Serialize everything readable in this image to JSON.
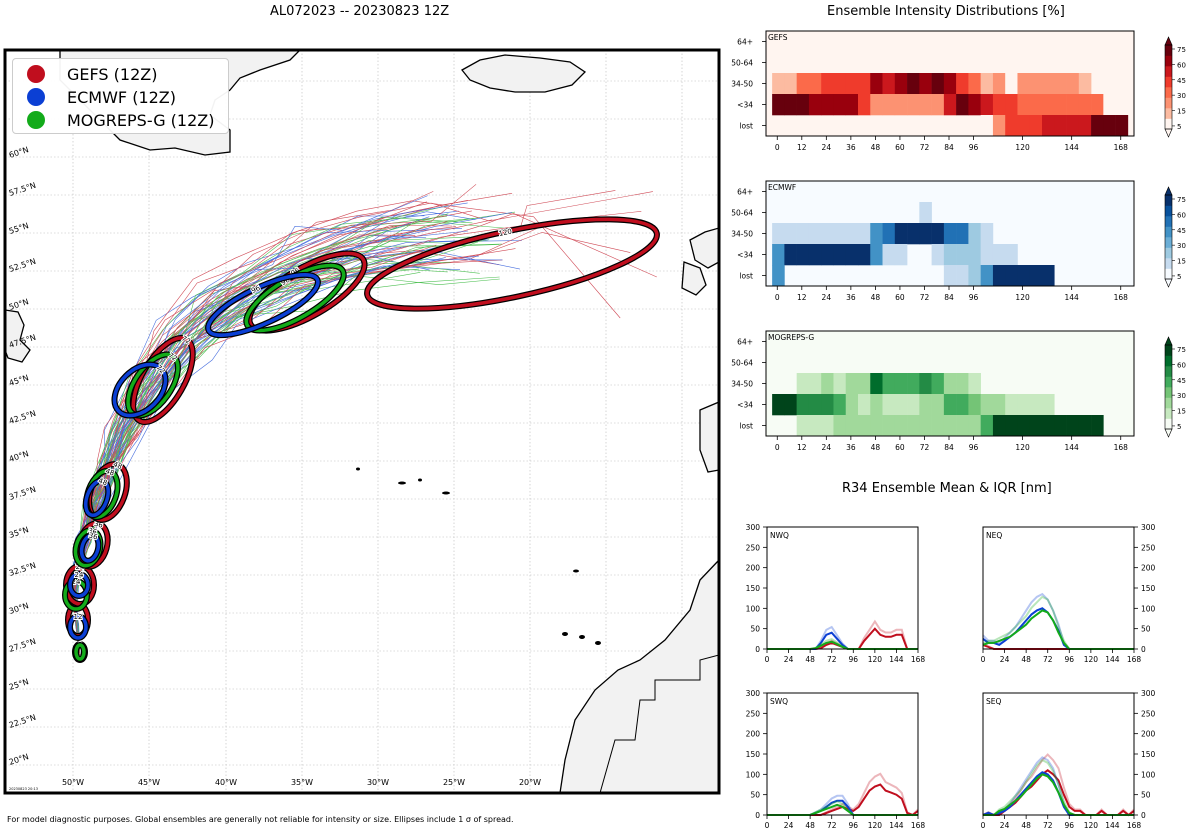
{
  "map": {
    "title": "AL072023 -- 20230823 12Z",
    "footer": "For model diagnostic purposes. Global ensembles are generally not reliable for intensity or size. Ellipses include 1 σ of spread.",
    "stamp": "20230823 20:13",
    "legend": [
      {
        "label": "GEFS (12Z)",
        "color": "#c00e1e"
      },
      {
        "label": "ECMWF (12Z)",
        "color": "#0b3fd4"
      },
      {
        "label": "MOGREPS-G (12Z)",
        "color": "#13ab1a"
      }
    ],
    "lon_labels": [
      "50°W",
      "45°W",
      "40°W",
      "35°W",
      "30°W",
      "25°W",
      "20°W"
    ],
    "lat_labels": [
      "20°N",
      "22.5°N",
      "25°N",
      "27.5°N",
      "30°N",
      "32.5°N",
      "35°N",
      "37.5°N",
      "40°N",
      "42.5°N",
      "45°N",
      "47.5°N",
      "50°N",
      "52.5°N",
      "55°N",
      "57.5°N",
      "60°N"
    ],
    "track_ellipse_labels": [
      "0",
      "12",
      "24",
      "36",
      "48",
      "72",
      "96",
      "120"
    ]
  },
  "chart_data": [
    {
      "type": "heatmap",
      "title": "Ensemble Intensity Distributions [%]",
      "panels": [
        {
          "name": "GEFS",
          "colormap": "Reds"
        },
        {
          "name": "ECMWF",
          "colormap": "Blues"
        },
        {
          "name": "MOGREPS-G",
          "colormap": "Greens"
        }
      ],
      "y_categories": [
        "64+",
        "50-64",
        "34-50",
        "<34",
        "lost"
      ],
      "x_ticks": [
        "0",
        "12",
        "24",
        "36",
        "48",
        "60",
        "72",
        "84",
        "96",
        "120",
        "144",
        "168"
      ],
      "colorbar_ticks": [
        "75",
        "60",
        "45",
        "30",
        "15",
        "5"
      ],
      "times": [
        0,
        6,
        12,
        18,
        24,
        30,
        36,
        42,
        48,
        54,
        60,
        66,
        72,
        78,
        84,
        90,
        96,
        102,
        108,
        114,
        120,
        126,
        132,
        138,
        144,
        150,
        156,
        162,
        168
      ],
      "values": {
        "GEFS": {
          "64+": [
            0,
            0,
            0,
            0,
            0,
            0,
            0,
            0,
            0,
            0,
            0,
            0,
            0,
            0,
            0,
            0,
            0,
            0,
            0,
            0,
            0,
            0,
            0,
            0,
            0,
            0,
            0,
            0,
            0
          ],
          "50-64": [
            0,
            0,
            0,
            0,
            0,
            0,
            0,
            0,
            0,
            0,
            10,
            0,
            0,
            0,
            0,
            0,
            0,
            0,
            10,
            10,
            0,
            0,
            0,
            0,
            0,
            0,
            0,
            0,
            0
          ],
          "34-50": [
            20,
            20,
            35,
            35,
            45,
            45,
            45,
            50,
            65,
            60,
            65,
            78,
            70,
            78,
            65,
            50,
            35,
            20,
            30,
            5,
            30,
            30,
            30,
            30,
            30,
            20,
            0,
            0,
            0
          ],
          "<34": [
            78,
            78,
            78,
            65,
            65,
            65,
            65,
            45,
            30,
            30,
            30,
            30,
            30,
            30,
            55,
            78,
            65,
            55,
            45,
            45,
            35,
            35,
            35,
            35,
            35,
            35,
            35,
            10,
            10
          ],
          "lost": [
            0,
            0,
            0,
            0,
            0,
            0,
            0,
            0,
            0,
            0,
            0,
            0,
            0,
            0,
            0,
            0,
            0,
            10,
            25,
            45,
            45,
            45,
            60,
            60,
            60,
            60,
            78,
            78,
            78
          ]
        },
        "ECMWF": {
          "64+": [
            0,
            0,
            0,
            0,
            0,
            0,
            0,
            0,
            0,
            0,
            0,
            0,
            0,
            0,
            0,
            0,
            0,
            0,
            0,
            0,
            0,
            0,
            0,
            0,
            0,
            0,
            0,
            0,
            0
          ],
          "50-64": [
            0,
            0,
            0,
            0,
            0,
            0,
            0,
            0,
            0,
            0,
            0,
            0,
            12,
            0,
            0,
            0,
            0,
            0,
            0,
            0,
            0,
            0,
            0,
            0,
            0,
            0,
            0,
            0,
            0
          ],
          "34-50": [
            12,
            12,
            12,
            12,
            12,
            12,
            12,
            12,
            45,
            60,
            78,
            78,
            78,
            78,
            60,
            60,
            30,
            12,
            0,
            0,
            0,
            0,
            0,
            0,
            0,
            0,
            0,
            0,
            0
          ],
          "<34": [
            45,
            78,
            78,
            78,
            78,
            78,
            78,
            78,
            45,
            20,
            20,
            0,
            0,
            20,
            30,
            30,
            30,
            20,
            12,
            12,
            0,
            0,
            0,
            0,
            0,
            0,
            0,
            0,
            0
          ],
          "lost": [
            45,
            0,
            0,
            0,
            0,
            0,
            0,
            0,
            0,
            0,
            0,
            0,
            0,
            0,
            12,
            12,
            30,
            45,
            78,
            78,
            78,
            78,
            78,
            0,
            0,
            0,
            0,
            0,
            0
          ]
        },
        "MOGREPS-G": {
          "64+": [
            0,
            0,
            0,
            0,
            0,
            0,
            0,
            0,
            0,
            0,
            0,
            0,
            0,
            0,
            0,
            0,
            0,
            0,
            0,
            0,
            0,
            0,
            0,
            0,
            0,
            0,
            0,
            0,
            0
          ],
          "50-64": [
            0,
            0,
            0,
            0,
            0,
            0,
            0,
            0,
            0,
            0,
            0,
            0,
            0,
            0,
            0,
            0,
            0,
            0,
            0,
            0,
            0,
            0,
            0,
            0,
            0,
            0,
            0,
            0,
            0
          ],
          "34-50": [
            0,
            0,
            12,
            12,
            25,
            12,
            25,
            25,
            65,
            45,
            45,
            45,
            60,
            45,
            25,
            25,
            12,
            0,
            0,
            0,
            0,
            0,
            0,
            0,
            0,
            0,
            0,
            0,
            0
          ],
          "<34": [
            78,
            78,
            60,
            60,
            60,
            45,
            25,
            12,
            25,
            12,
            12,
            12,
            25,
            25,
            45,
            45,
            40,
            30,
            25,
            12,
            12,
            12,
            12,
            0,
            0,
            0,
            0,
            0,
            0
          ],
          "lost": [
            0,
            0,
            12,
            12,
            12,
            25,
            25,
            25,
            25,
            25,
            25,
            25,
            25,
            25,
            25,
            25,
            30,
            45,
            78,
            78,
            78,
            78,
            78,
            78,
            78,
            78,
            78,
            0,
            0
          ]
        }
      }
    },
    {
      "type": "line",
      "title": "R34 Ensemble Mean & IQR [nm]",
      "panels": [
        "NWQ",
        "NEQ",
        "SWQ",
        "SEQ"
      ],
      "x_ticks": [
        0,
        24,
        48,
        72,
        96,
        120,
        144,
        168
      ],
      "y_ticks": [
        0,
        50,
        100,
        150,
        200,
        250,
        300
      ],
      "ylim": [
        0,
        300
      ],
      "x": [
        0,
        6,
        12,
        18,
        24,
        30,
        36,
        42,
        48,
        54,
        60,
        66,
        72,
        78,
        84,
        90,
        96,
        102,
        108,
        114,
        120,
        126,
        132,
        138,
        144,
        150,
        156,
        162,
        168
      ],
      "series": {
        "NWQ": {
          "GEFS": [
            0,
            0,
            0,
            0,
            0,
            0,
            0,
            0,
            0,
            0,
            2,
            10,
            15,
            10,
            5,
            0,
            0,
            0,
            20,
            35,
            50,
            35,
            30,
            30,
            35,
            35,
            0,
            0,
            0
          ],
          "ECMWF": [
            0,
            0,
            0,
            0,
            0,
            0,
            0,
            0,
            0,
            0,
            15,
            35,
            40,
            25,
            10,
            0,
            0,
            0,
            0,
            0,
            0,
            0,
            0,
            0,
            0,
            0,
            0,
            0,
            0
          ],
          "MOGREPS-G": [
            0,
            0,
            0,
            0,
            0,
            0,
            0,
            0,
            0,
            2,
            8,
            15,
            18,
            12,
            5,
            0,
            0,
            0,
            0,
            0,
            0,
            0,
            0,
            0,
            0,
            0,
            0,
            0,
            0
          ]
        },
        "NEQ": {
          "GEFS": [
            10,
            5,
            0,
            0,
            0,
            0,
            0,
            0,
            0,
            0,
            0,
            0,
            0,
            0,
            0,
            0,
            0,
            0,
            0,
            0,
            0,
            0,
            0,
            0,
            0,
            0,
            0,
            0,
            0
          ],
          "ECMWF": [
            25,
            15,
            15,
            10,
            20,
            30,
            40,
            55,
            70,
            85,
            95,
            100,
            90,
            70,
            45,
            10,
            0,
            0,
            0,
            0,
            0,
            0,
            0,
            0,
            0,
            0,
            0,
            0,
            0
          ],
          "MOGREPS-G": [
            10,
            15,
            15,
            20,
            25,
            30,
            40,
            50,
            60,
            75,
            85,
            95,
            90,
            70,
            40,
            15,
            0,
            0,
            0,
            0,
            0,
            0,
            0,
            0,
            0,
            0,
            0,
            0,
            0
          ]
        },
        "SWQ": {
          "GEFS": [
            0,
            0,
            0,
            0,
            0,
            0,
            0,
            0,
            0,
            0,
            0,
            5,
            10,
            15,
            20,
            15,
            10,
            20,
            40,
            60,
            70,
            75,
            60,
            55,
            50,
            40,
            5,
            0,
            10
          ],
          "ECMWF": [
            0,
            0,
            0,
            0,
            0,
            0,
            0,
            0,
            0,
            5,
            10,
            20,
            30,
            35,
            35,
            20,
            0,
            0,
            0,
            0,
            0,
            0,
            0,
            0,
            0,
            0,
            0,
            0,
            0
          ],
          "MOGREPS-G": [
            0,
            0,
            0,
            0,
            0,
            0,
            0,
            0,
            0,
            5,
            10,
            15,
            20,
            25,
            20,
            10,
            0,
            0,
            0,
            0,
            0,
            0,
            0,
            0,
            0,
            0,
            0,
            0,
            0
          ]
        },
        "SEQ": {
          "GEFS": [
            0,
            5,
            0,
            0,
            10,
            20,
            30,
            45,
            60,
            70,
            85,
            100,
            110,
            100,
            85,
            50,
            20,
            10,
            10,
            0,
            0,
            0,
            10,
            0,
            0,
            0,
            10,
            0,
            10
          ],
          "ECMWF": [
            0,
            5,
            0,
            5,
            10,
            20,
            35,
            50,
            65,
            80,
            95,
            105,
            100,
            85,
            55,
            20,
            0,
            0,
            0,
            0,
            0,
            0,
            0,
            0,
            0,
            0,
            0,
            0,
            0
          ],
          "MOGREPS-G": [
            0,
            0,
            0,
            10,
            15,
            25,
            35,
            45,
            60,
            75,
            90,
            100,
            95,
            80,
            55,
            25,
            5,
            0,
            0,
            0,
            0,
            0,
            0,
            0,
            0,
            0,
            0,
            0,
            0
          ]
        }
      }
    }
  ]
}
